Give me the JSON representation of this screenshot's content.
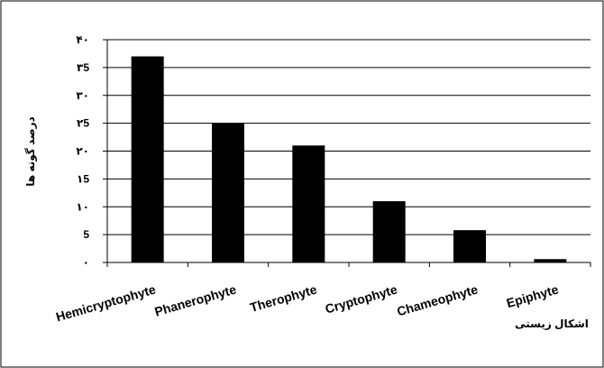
{
  "chart_data": {
    "type": "bar",
    "categories": [
      "Hemicryptophyte",
      "Phanerophyte",
      "Therophyte",
      "Cryptophyte",
      "Chameophyte",
      "Epiphyte"
    ],
    "values": [
      37,
      25,
      21,
      11,
      5.8,
      0.6
    ],
    "ylabel": "درصد گونه ها",
    "xlabel": "اشکال زیستی",
    "ylim": [
      0,
      40
    ],
    "yticks": [
      0,
      5,
      10,
      15,
      20,
      25,
      30,
      35,
      40
    ],
    "ytick_labels": [
      "۰",
      "5",
      "۱۰",
      "۱5",
      "۲۰",
      "۲5",
      "۳۰",
      "۳5",
      "۴۰"
    ],
    "bar_color": "#000000",
    "grid": true,
    "grid_color": "#000000",
    "legend": "none"
  }
}
